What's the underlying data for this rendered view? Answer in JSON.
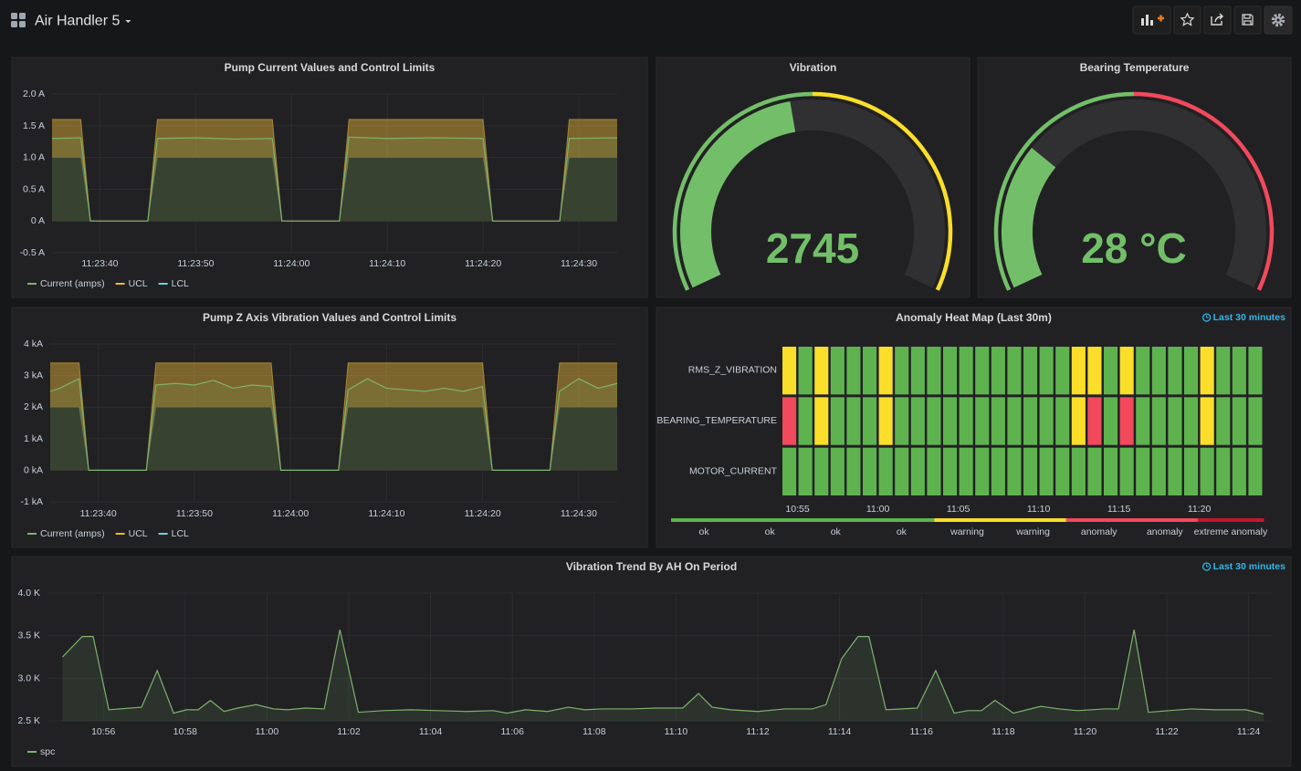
{
  "header": {
    "title": "Air Handler 5"
  },
  "chart_data": [
    {
      "type": "line",
      "title": "Pump Current Values and Control Limits",
      "x": [
        "11:23:35",
        "11:23:38",
        "11:23:39",
        "11:23:45",
        "11:23:46",
        "11:23:50",
        "11:23:54",
        "11:23:58",
        "11:23:59",
        "11:24:05",
        "11:24:06",
        "11:24:10",
        "11:24:15",
        "11:24:20",
        "11:24:21",
        "11:24:28",
        "11:24:29",
        "11:24:34"
      ],
      "series": [
        {
          "name": "Current (amps)",
          "color": "#7eb26d",
          "values": [
            1.3,
            1.31,
            0,
            0,
            1.3,
            1.31,
            1.29,
            1.3,
            0,
            0,
            1.32,
            1.3,
            1.31,
            1.3,
            0,
            0,
            1.3,
            1.31
          ]
        },
        {
          "name": "UCL",
          "color": "#eab839",
          "values": [
            1.6,
            1.6,
            0,
            0,
            1.6,
            1.6,
            1.6,
            1.6,
            0,
            0,
            1.6,
            1.6,
            1.6,
            1.6,
            0,
            0,
            1.6,
            1.6
          ]
        },
        {
          "name": "LCL",
          "color": "#6ed0e0",
          "values": [
            1,
            1,
            0,
            0,
            1,
            1,
            1,
            1,
            0,
            0,
            1,
            1,
            1,
            1,
            0,
            0,
            1,
            1
          ]
        }
      ],
      "xlim": [
        "11:23:35",
        "11:24:34"
      ],
      "xticks": [
        "11:23:40",
        "11:23:50",
        "11:24:00",
        "11:24:10",
        "11:24:20",
        "11:24:30"
      ],
      "ylim": [
        -0.5,
        2
      ],
      "yticks": [
        {
          "value": -0.5,
          "label": "-0.5 A"
        },
        {
          "value": 0,
          "label": "0 A"
        },
        {
          "value": 0.5,
          "label": "0.5 A"
        },
        {
          "value": 1,
          "label": "1.0 A"
        },
        {
          "value": 1.5,
          "label": "1.5 A"
        },
        {
          "value": 2,
          "label": "2.0 A"
        }
      ],
      "grid": true
    },
    {
      "type": "gauge",
      "title": "Vibration",
      "value": 2745,
      "min": 0,
      "max": 6000,
      "thresholds": [
        3000
      ],
      "colors": [
        "#73bf69",
        "#fade2a"
      ]
    },
    {
      "type": "gauge",
      "title": "Bearing Temperature",
      "value": 28,
      "value_label": "28 °C",
      "min": 0,
      "max": 100,
      "thresholds": [
        50
      ],
      "colors": [
        "#73bf69",
        "#f2495c"
      ]
    },
    {
      "type": "line",
      "title": "Pump Z Axis Vibration Values and Control Limits",
      "x": [
        "11:23:35",
        "11:23:36",
        "11:23:38",
        "11:23:39",
        "11:23:45",
        "11:23:46",
        "11:23:48",
        "11:23:50",
        "11:23:52",
        "11:23:54",
        "11:23:56",
        "11:23:58",
        "11:23:59",
        "11:24:05",
        "11:24:06",
        "11:24:08",
        "11:24:10",
        "11:24:12",
        "11:24:14",
        "11:24:16",
        "11:24:18",
        "11:24:20",
        "11:24:21",
        "11:24:27",
        "11:24:28",
        "11:24:30",
        "11:24:32",
        "11:24:34"
      ],
      "series": [
        {
          "name": "Current (amps)",
          "color": "#7eb26d",
          "values": [
            2.5,
            2.6,
            2.9,
            0,
            0,
            2.7,
            2.75,
            2.7,
            2.85,
            2.6,
            2.7,
            2.65,
            0,
            0,
            2.55,
            2.9,
            2.6,
            2.55,
            2.5,
            2.6,
            2.5,
            2.65,
            0,
            0,
            2.5,
            2.9,
            2.6,
            2.75
          ]
        },
        {
          "name": "UCL",
          "color": "#eab839",
          "values": [
            3.4,
            3.4,
            3.4,
            0,
            0,
            3.4,
            3.4,
            3.4,
            3.4,
            3.4,
            3.4,
            3.4,
            0,
            0,
            3.4,
            3.4,
            3.4,
            3.4,
            3.4,
            3.4,
            3.4,
            3.4,
            0,
            0,
            3.4,
            3.4,
            3.4,
            3.4
          ]
        },
        {
          "name": "LCL",
          "color": "#6ed0e0",
          "values": [
            2,
            2,
            2,
            0,
            0,
            2,
            2,
            2,
            2,
            2,
            2,
            2,
            0,
            0,
            2,
            2,
            2,
            2,
            2,
            2,
            2,
            2,
            0,
            0,
            2,
            2,
            2,
            2
          ]
        }
      ],
      "xlim": [
        "11:23:35",
        "11:24:34"
      ],
      "xticks": [
        "11:23:40",
        "11:23:50",
        "11:24:00",
        "11:24:10",
        "11:24:20",
        "11:24:30"
      ],
      "ylim": [
        -1,
        4
      ],
      "yticks": [
        {
          "value": -1,
          "label": "-1 kA"
        },
        {
          "value": 0,
          "label": "0 kA"
        },
        {
          "value": 1,
          "label": "1 kA"
        },
        {
          "value": 2,
          "label": "2 kA"
        },
        {
          "value": 3,
          "label": "3 kA"
        },
        {
          "value": 4,
          "label": "4 kA"
        }
      ],
      "grid": true
    },
    {
      "type": "heatmap",
      "title": "Anomaly Heat Map (Last 30m)",
      "time_range": "Last 30 minutes",
      "x": [
        "10:54",
        "10:55",
        "10:56",
        "10:57",
        "10:58",
        "10:59",
        "11:00",
        "11:01",
        "11:02",
        "11:03",
        "11:04",
        "11:05",
        "11:06",
        "11:07",
        "11:08",
        "11:09",
        "11:10",
        "11:11",
        "11:12",
        "11:13",
        "11:14",
        "11:15",
        "11:16",
        "11:17",
        "11:18",
        "11:19",
        "11:20",
        "11:21",
        "11:22",
        "11:23"
      ],
      "xlim": [
        "10:54",
        "11:24"
      ],
      "xticks": [
        "10:55",
        "11:00",
        "11:05",
        "11:10",
        "11:15",
        "11:20"
      ],
      "series": [
        {
          "name": "RMS_Z_VIBRATION",
          "values": [
            1,
            0,
            1,
            0,
            0,
            0,
            1,
            0,
            0,
            0,
            0,
            0,
            0,
            0,
            0,
            0,
            0,
            0,
            1,
            1,
            0,
            1,
            0,
            0,
            0,
            0,
            1,
            0,
            0,
            0
          ]
        },
        {
          "name": "BEARING_TEMPERATURE",
          "values": [
            2,
            0,
            1,
            0,
            0,
            0,
            1,
            0,
            0,
            0,
            0,
            0,
            0,
            0,
            0,
            0,
            0,
            0,
            1,
            2,
            0,
            2,
            0,
            0,
            0,
            0,
            1,
            0,
            0,
            0
          ]
        },
        {
          "name": "MOTOR_CURRENT",
          "values": [
            0,
            0,
            0,
            0,
            0,
            0,
            0,
            0,
            0,
            0,
            0,
            0,
            0,
            0,
            0,
            0,
            0,
            0,
            0,
            0,
            0,
            0,
            0,
            0,
            0,
            0,
            0,
            0,
            0,
            0
          ]
        }
      ],
      "value_colors": [
        "#5fb34f",
        "#fade2a",
        "#f2495c"
      ],
      "scale_labels": [
        "ok",
        "ok",
        "ok",
        "ok",
        "warning",
        "warning",
        "anomaly",
        "anomaly",
        "extreme anomaly"
      ],
      "scale_colors": [
        "#5fb34f",
        "#5fb34f",
        "#5fb34f",
        "#5fb34f",
        "#fade2a",
        "#fade2a",
        "#f2495c",
        "#f2495c",
        "#c4162a"
      ]
    },
    {
      "type": "line",
      "title": "Vibration Trend By AH On Period",
      "time_range": "Last 30 minutes",
      "x": [
        "10:55:00",
        "10:55:29",
        "10:55:45",
        "10:56:08",
        "10:56:56",
        "10:57:19",
        "10:57:43",
        "10:58:02",
        "10:58:19",
        "10:58:37",
        "10:58:57",
        "10:59:17",
        "10:59:44",
        "11:00:10",
        "11:00:30",
        "11:00:57",
        "11:01:24",
        "11:01:47",
        "11:02:14",
        "11:02:51",
        "11:03:31",
        "11:04:11",
        "11:04:52",
        "11:05:32",
        "11:05:52",
        "11:06:19",
        "11:06:52",
        "11:07:22",
        "11:07:46",
        "11:08:12",
        "11:08:53",
        "11:09:33",
        "11:10:10",
        "11:10:33",
        "11:10:53",
        "11:11:20",
        "11:12:00",
        "11:12:40",
        "11:13:20",
        "11:13:40",
        "11:14:03",
        "11:14:27",
        "11:14:43",
        "11:15:08",
        "11:15:54",
        "11:16:21",
        "11:16:48",
        "11:17:08",
        "11:17:28",
        "11:17:48",
        "11:18:15",
        "11:18:55",
        "11:19:22",
        "11:19:49",
        "11:20:29",
        "11:20:49",
        "11:21:12",
        "11:21:33",
        "11:22:03",
        "11:22:36",
        "11:23:10",
        "11:23:56",
        "11:24:22"
      ],
      "series": [
        {
          "name": "spc",
          "color": "#7eb26d",
          "values": [
            3250,
            3490,
            3490,
            2630,
            2660,
            3090,
            2590,
            2630,
            2630,
            2740,
            2610,
            2650,
            2690,
            2640,
            2630,
            2650,
            2640,
            3570,
            2600,
            2620,
            2630,
            2620,
            2610,
            2620,
            2590,
            2630,
            2610,
            2660,
            2630,
            2640,
            2640,
            2650,
            2650,
            2820,
            2660,
            2630,
            2610,
            2640,
            2640,
            2690,
            3230,
            3490,
            3490,
            2630,
            2650,
            3090,
            2590,
            2620,
            2620,
            2740,
            2590,
            2670,
            2640,
            2620,
            2640,
            2640,
            3570,
            2600,
            2620,
            2640,
            2630,
            2630,
            2580
          ]
        }
      ],
      "xlim": [
        "10:54:38",
        "11:24:34"
      ],
      "xticks": [
        "10:56",
        "10:58",
        "11:00",
        "11:02",
        "11:04",
        "11:06",
        "11:08",
        "11:10",
        "11:12",
        "11:14",
        "11:16",
        "11:18",
        "11:20",
        "11:22",
        "11:24"
      ],
      "ylim": [
        2500,
        4000
      ],
      "yticks": [
        {
          "value": 2500,
          "label": "2.5 K"
        },
        {
          "value": 3000,
          "label": "3.0 K"
        },
        {
          "value": 3500,
          "label": "3.5 K"
        },
        {
          "value": 4000,
          "label": "4.0 K"
        }
      ],
      "grid": true
    }
  ]
}
